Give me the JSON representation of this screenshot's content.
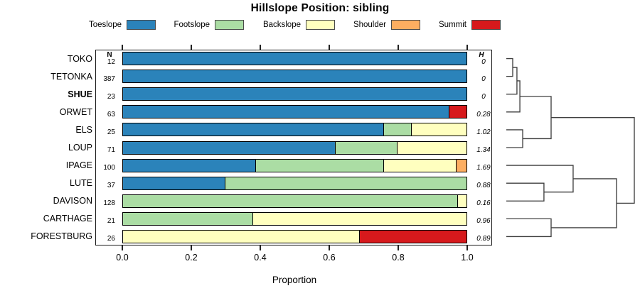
{
  "title": "Hillslope Position: sibling",
  "chart_data": {
    "type": "bar",
    "variant": "stacked-horizontal-proportion",
    "title": "Hillslope Position: sibling",
    "xlabel": "Proportion",
    "xlim": [
      0,
      1
    ],
    "x_ticks": [
      0.0,
      0.2,
      0.4,
      0.6,
      0.8,
      1.0
    ],
    "x_tick_labels": [
      "0.0",
      "0.2",
      "0.4",
      "0.6",
      "0.8",
      "1.0"
    ],
    "legend_position": "top",
    "n_header": "N",
    "h_header": "H",
    "categories": [
      "Toeslope",
      "Footslope",
      "Backslope",
      "Shoulder",
      "Summit"
    ],
    "category_colors": [
      "#2B83BA",
      "#ABDDA4",
      "#FFFFBF",
      "#FDAE61",
      "#D7191C"
    ],
    "rows": [
      {
        "name": "TOKO",
        "bold": false,
        "n": 12,
        "h": "0",
        "proportions": [
          1.0,
          0,
          0,
          0,
          0
        ]
      },
      {
        "name": "TETONKA",
        "bold": false,
        "n": 387,
        "h": "0",
        "proportions": [
          1.0,
          0,
          0,
          0,
          0
        ]
      },
      {
        "name": "SHUE",
        "bold": true,
        "n": 23,
        "h": "0",
        "proportions": [
          1.0,
          0,
          0,
          0,
          0
        ]
      },
      {
        "name": "ORWET",
        "bold": false,
        "n": 63,
        "h": "0.28",
        "proportions": [
          0.95,
          0,
          0,
          0,
          0.05
        ]
      },
      {
        "name": "ELS",
        "bold": false,
        "n": 25,
        "h": "1.02",
        "proportions": [
          0.76,
          0.08,
          0.16,
          0,
          0
        ]
      },
      {
        "name": "LOUP",
        "bold": false,
        "n": 71,
        "h": "1.34",
        "proportions": [
          0.62,
          0.18,
          0.2,
          0,
          0
        ]
      },
      {
        "name": "IPAGE",
        "bold": false,
        "n": 100,
        "h": "1.69",
        "proportions": [
          0.39,
          0.37,
          0.21,
          0.03,
          0
        ]
      },
      {
        "name": "LUTE",
        "bold": false,
        "n": 37,
        "h": "0.88",
        "proportions": [
          0.3,
          0.7,
          0,
          0,
          0
        ]
      },
      {
        "name": "DAVISON",
        "bold": false,
        "n": 128,
        "h": "0.16",
        "proportions": [
          0,
          0.975,
          0.025,
          0,
          0
        ]
      },
      {
        "name": "CARTHAGE",
        "bold": false,
        "n": 21,
        "h": "0.96",
        "proportions": [
          0,
          0.38,
          0.62,
          0,
          0
        ]
      },
      {
        "name": "FORESTBURG",
        "bold": false,
        "n": 26,
        "h": "0.89",
        "proportions": [
          0,
          0,
          0.69,
          0,
          0.31
        ]
      }
    ],
    "dendrogram": {
      "position": "right",
      "heights_normalized": true,
      "merges": [
        {
          "id": "m1",
          "a": "TOKO",
          "b": "TETONKA",
          "h": 0.05
        },
        {
          "id": "m2",
          "a": "m1",
          "b": "SHUE",
          "h": 0.083
        },
        {
          "id": "m3",
          "a": "m2",
          "b": "ORWET",
          "h": 0.106
        },
        {
          "id": "m4",
          "a": "ELS",
          "b": "LOUP",
          "h": 0.128
        },
        {
          "id": "m5",
          "a": "m3",
          "b": "m4",
          "h": 0.35
        },
        {
          "id": "m6",
          "a": "LUTE",
          "b": "DAVISON",
          "h": 0.294
        },
        {
          "id": "m7",
          "a": "IPAGE",
          "b": "m6",
          "h": 0.522
        },
        {
          "id": "m8",
          "a": "CARTHAGE",
          "b": "FORESTBURG",
          "h": 0.35
        },
        {
          "id": "m9",
          "a": "m7",
          "b": "m8",
          "h": 0.861
        },
        {
          "id": "m10",
          "a": "m5",
          "b": "m9",
          "h": 1.0
        }
      ]
    }
  }
}
